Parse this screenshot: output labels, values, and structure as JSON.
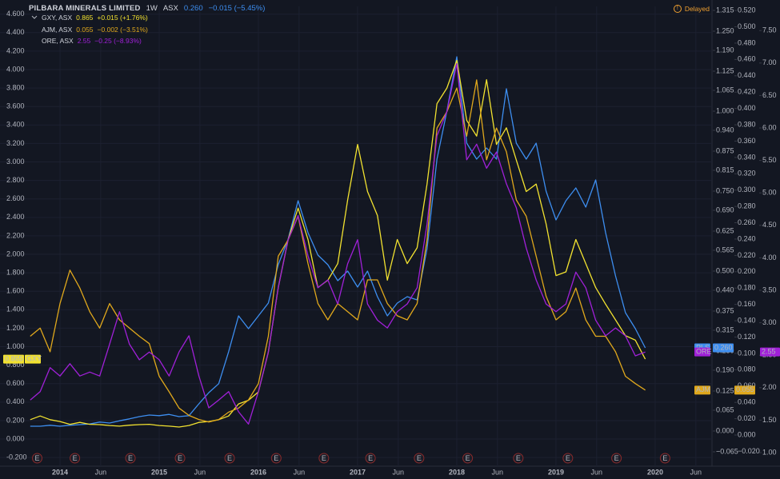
{
  "chart_data": {
    "type": "line",
    "title": "PILBARA MINERALS LIMITED",
    "interval": "1W",
    "exchange": "ASX",
    "status": "Delayed",
    "x": [
      2013.7,
      2013.8,
      2013.9,
      2014.0,
      2014.1,
      2014.2,
      2014.3,
      2014.4,
      2014.5,
      2014.6,
      2014.7,
      2014.8,
      2014.9,
      2015.0,
      2015.1,
      2015.2,
      2015.3,
      2015.4,
      2015.5,
      2015.6,
      2015.7,
      2015.8,
      2015.9,
      2016.0,
      2016.1,
      2016.2,
      2016.3,
      2016.4,
      2016.5,
      2016.6,
      2016.7,
      2016.8,
      2016.9,
      2017.0,
      2017.1,
      2017.2,
      2017.3,
      2017.4,
      2017.5,
      2017.6,
      2017.7,
      2017.8,
      2017.9,
      2018.0,
      2018.1,
      2018.2,
      2018.3,
      2018.4,
      2018.5,
      2018.6,
      2018.7,
      2018.8,
      2018.9,
      2019.0,
      2019.1,
      2019.2,
      2019.3,
      2019.4,
      2019.5,
      2019.6,
      2019.7,
      2019.8,
      2019.9
    ],
    "xlim": [
      2013.395,
      2020.573
    ],
    "xticks": [
      {
        "value": 2014,
        "label": "2014"
      },
      {
        "value": 2014.41,
        "label": "Jun"
      },
      {
        "value": 2015,
        "label": "2015"
      },
      {
        "value": 2015.41,
        "label": "Jun"
      },
      {
        "value": 2016,
        "label": "2016"
      },
      {
        "value": 2016.41,
        "label": "Jun"
      },
      {
        "value": 2017,
        "label": "2017"
      },
      {
        "value": 2017.41,
        "label": "Jun"
      },
      {
        "value": 2018,
        "label": "2018"
      },
      {
        "value": 2018.41,
        "label": "Jun"
      },
      {
        "value": 2019,
        "label": "2019"
      },
      {
        "value": 2019.41,
        "label": "Jun"
      },
      {
        "value": 2020,
        "label": "2020"
      },
      {
        "value": 2020.41,
        "label": "Jun"
      }
    ],
    "ylim": [
      -0.294,
      4.684
    ],
    "yticks": [
      {
        "value": 4.6,
        "label": "4.600"
      },
      {
        "value": 4.4,
        "label": "4.400"
      },
      {
        "value": 4.2,
        "label": "4.200"
      },
      {
        "value": 4.0,
        "label": "4.000"
      },
      {
        "value": 3.8,
        "label": "3.800"
      },
      {
        "value": 3.6,
        "label": "3.600"
      },
      {
        "value": 3.4,
        "label": "3.400"
      },
      {
        "value": 3.2,
        "label": "3.200"
      },
      {
        "value": 3.0,
        "label": "3.000"
      },
      {
        "value": 2.8,
        "label": "2.800"
      },
      {
        "value": 2.6,
        "label": "2.600"
      },
      {
        "value": 2.4,
        "label": "2.400"
      },
      {
        "value": 2.2,
        "label": "2.200"
      },
      {
        "value": 2.0,
        "label": "2.000"
      },
      {
        "value": 1.8,
        "label": "1.800"
      },
      {
        "value": 1.6,
        "label": "1.600"
      },
      {
        "value": 1.4,
        "label": "1.400"
      },
      {
        "value": 1.2,
        "label": "1.200"
      },
      {
        "value": 1.0,
        "label": "1.000"
      },
      {
        "value": 0.8,
        "label": "0.800"
      },
      {
        "value": 0.6,
        "label": "0.600"
      },
      {
        "value": 0.4,
        "label": "0.400"
      },
      {
        "value": 0.2,
        "label": "0.200"
      },
      {
        "value": 0,
        "label": "0.000"
      },
      {
        "value": -0.2,
        "label": "-0.200"
      }
    ],
    "y2lim": [
      -0.11,
      1.3275
    ],
    "y2ticks": [
      {
        "value": 1.315,
        "label": "1.315"
      },
      {
        "value": 1.25,
        "label": "1.250"
      },
      {
        "value": 1.19,
        "label": "1.190"
      },
      {
        "value": 1.125,
        "label": "1.125"
      },
      {
        "value": 1.065,
        "label": "1.065"
      },
      {
        "value": 1.0,
        "label": "1.000"
      },
      {
        "value": 0.94,
        "label": "0.940"
      },
      {
        "value": 0.875,
        "label": "0.875"
      },
      {
        "value": 0.815,
        "label": "0.815"
      },
      {
        "value": 0.75,
        "label": "0.750"
      },
      {
        "value": 0.69,
        "label": "0.690"
      },
      {
        "value": 0.625,
        "label": "0.625"
      },
      {
        "value": 0.565,
        "label": "0.565"
      },
      {
        "value": 0.5,
        "label": "0.500"
      },
      {
        "value": 0.44,
        "label": "0.440"
      },
      {
        "value": 0.375,
        "label": "0.375"
      },
      {
        "value": 0.315,
        "label": "0.315"
      },
      {
        "value": 0.25,
        "label": "0.250"
      },
      {
        "value": 0.19,
        "label": "0.190"
      },
      {
        "value": 0.125,
        "label": "0.125"
      },
      {
        "value": 0.065,
        "label": "0.065"
      },
      {
        "value": 0,
        "label": "0.000"
      },
      {
        "value": -0.065,
        "label": "−0.065"
      }
    ],
    "y3lim": [
      -0.0382,
      0.525
    ],
    "y3ticks": [
      {
        "value": 0.52,
        "label": "0.520"
      },
      {
        "value": 0.5,
        "label": "0.500"
      },
      {
        "value": 0.48,
        "label": "0.480"
      },
      {
        "value": 0.46,
        "label": "0.460"
      },
      {
        "value": 0.44,
        "label": "0.440"
      },
      {
        "value": 0.42,
        "label": "0.420"
      },
      {
        "value": 0.4,
        "label": "0.400"
      },
      {
        "value": 0.38,
        "label": "0.380"
      },
      {
        "value": 0.36,
        "label": "0.360"
      },
      {
        "value": 0.34,
        "label": "0.340"
      },
      {
        "value": 0.32,
        "label": "0.320"
      },
      {
        "value": 0.3,
        "label": "0.300"
      },
      {
        "value": 0.28,
        "label": "0.280"
      },
      {
        "value": 0.26,
        "label": "0.260"
      },
      {
        "value": 0.24,
        "label": "0.240"
      },
      {
        "value": 0.22,
        "label": "0.220"
      },
      {
        "value": 0.2,
        "label": "0.200"
      },
      {
        "value": 0.18,
        "label": "0.180"
      },
      {
        "value": 0.16,
        "label": "0.160"
      },
      {
        "value": 0.14,
        "label": "0.140"
      },
      {
        "value": 0.12,
        "label": "0.120"
      },
      {
        "value": 0.1,
        "label": "0.100"
      },
      {
        "value": 0.08,
        "label": "0.080"
      },
      {
        "value": 0.06,
        "label": "0.060"
      },
      {
        "value": 0.04,
        "label": "0.040"
      },
      {
        "value": 0.02,
        "label": "0.020"
      },
      {
        "value": 0,
        "label": "0.000"
      },
      {
        "value": -0.02,
        "label": "−0.020"
      }
    ],
    "y4lim": [
      0.791,
      7.872
    ],
    "y4ticks": [
      {
        "value": 7.5,
        "label": "7.50"
      },
      {
        "value": 7.0,
        "label": "7.00"
      },
      {
        "value": 6.5,
        "label": "6.50"
      },
      {
        "value": 6.0,
        "label": "6.00"
      },
      {
        "value": 5.5,
        "label": "5.50"
      },
      {
        "value": 5.0,
        "label": "5.00"
      },
      {
        "value": 4.5,
        "label": "4.50"
      },
      {
        "value": 4.0,
        "label": "4.00"
      },
      {
        "value": 3.5,
        "label": "3.50"
      },
      {
        "value": 3.0,
        "label": "3.00"
      },
      {
        "value": 2.5,
        "label": "2.50"
      },
      {
        "value": 2.0,
        "label": "2.00"
      },
      {
        "value": 1.5,
        "label": "1.50"
      },
      {
        "value": 1.0,
        "label": "1.00"
      }
    ],
    "grid": true,
    "series": [
      {
        "name": "PLS",
        "tag": "PLS",
        "axis": "y2",
        "color": "#3d8ef0",
        "price_label": "0.260",
        "change": "−0.015 (−5.45%)",
        "values": [
          0.015,
          0.015,
          0.018,
          0.015,
          0.018,
          0.02,
          0.022,
          0.028,
          0.025,
          0.032,
          0.038,
          0.045,
          0.05,
          0.048,
          0.052,
          0.045,
          0.048,
          0.085,
          0.12,
          0.148,
          0.248,
          0.36,
          0.32,
          0.36,
          0.4,
          0.52,
          0.6,
          0.72,
          0.62,
          0.55,
          0.52,
          0.47,
          0.5,
          0.45,
          0.5,
          0.42,
          0.36,
          0.4,
          0.42,
          0.41,
          0.57,
          0.85,
          1.0,
          1.17,
          0.9,
          0.85,
          0.885,
          0.85,
          1.07,
          0.9,
          0.85,
          0.9,
          0.75,
          0.66,
          0.72,
          0.76,
          0.7,
          0.785,
          0.62,
          0.485,
          0.37,
          0.32,
          0.26
        ]
      },
      {
        "name": "GXY, ASX",
        "tag": "GXY",
        "axis": "y",
        "color": "#f2e230",
        "price_label": "0.865",
        "change": "+0.015 (+1.76%)",
        "values": [
          0.21,
          0.25,
          0.21,
          0.19,
          0.16,
          0.18,
          0.16,
          0.156,
          0.147,
          0.14,
          0.15,
          0.156,
          0.16,
          0.147,
          0.14,
          0.13,
          0.147,
          0.18,
          0.19,
          0.21,
          0.25,
          0.38,
          0.42,
          0.51,
          0.94,
          1.64,
          2.16,
          2.5,
          2.16,
          1.64,
          1.72,
          1.9,
          2.59,
          3.19,
          2.68,
          2.42,
          1.72,
          2.16,
          1.9,
          2.07,
          2.76,
          3.63,
          3.8,
          4.1,
          3.45,
          3.28,
          3.89,
          3.19,
          3.37,
          3.02,
          2.68,
          2.76,
          2.33,
          1.77,
          1.81,
          2.16,
          1.9,
          1.64,
          1.46,
          1.29,
          1.12,
          1.07,
          0.865
        ]
      },
      {
        "name": "AJM, ASX",
        "tag": "AJM",
        "axis": "y3",
        "color": "#e0a81c",
        "price_label": "0.055",
        "change": "−0.002 (−3.51%)",
        "values": [
          0.121,
          0.131,
          0.102,
          0.161,
          0.202,
          0.18,
          0.151,
          0.131,
          0.161,
          0.141,
          0.131,
          0.121,
          0.112,
          0.072,
          0.053,
          0.033,
          0.024,
          0.019,
          0.016,
          0.019,
          0.028,
          0.033,
          0.043,
          0.063,
          0.121,
          0.219,
          0.239,
          0.268,
          0.21,
          0.161,
          0.141,
          0.161,
          0.151,
          0.141,
          0.19,
          0.19,
          0.161,
          0.146,
          0.141,
          0.161,
          0.239,
          0.376,
          0.396,
          0.425,
          0.366,
          0.435,
          0.337,
          0.376,
          0.347,
          0.288,
          0.268,
          0.219,
          0.17,
          0.141,
          0.151,
          0.18,
          0.141,
          0.121,
          0.121,
          0.102,
          0.072,
          0.063,
          0.055
        ]
      },
      {
        "name": "ORE, ASX",
        "tag": "ORE",
        "axis": "y4",
        "color": "#a020d8",
        "price_label": "2.55",
        "change": "−0.25 (−8.93%)",
        "values": [
          1.81,
          1.94,
          2.31,
          2.18,
          2.37,
          2.18,
          2.24,
          2.18,
          2.67,
          3.17,
          2.67,
          2.43,
          2.55,
          2.43,
          2.18,
          2.55,
          2.8,
          2.18,
          1.69,
          1.81,
          1.94,
          1.63,
          1.44,
          1.94,
          2.55,
          3.54,
          4.28,
          4.65,
          4.03,
          3.54,
          3.66,
          3.29,
          3.91,
          4.28,
          3.29,
          3.04,
          2.92,
          3.17,
          3.29,
          3.54,
          4.52,
          5.88,
          6.25,
          6.99,
          5.51,
          5.75,
          5.38,
          5.63,
          5.14,
          4.77,
          4.15,
          3.66,
          3.29,
          3.17,
          3.29,
          3.78,
          3.54,
          3.04,
          2.8,
          2.92,
          2.8,
          2.49,
          2.55
        ]
      }
    ],
    "earnings": {
      "label": "E",
      "x": [
        2013.77,
        2014.15,
        2014.71,
        2015.21,
        2015.71,
        2016.18,
        2016.66,
        2017.13,
        2017.62,
        2018.11,
        2018.62,
        2019.12,
        2019.61,
        2020.1
      ]
    }
  }
}
